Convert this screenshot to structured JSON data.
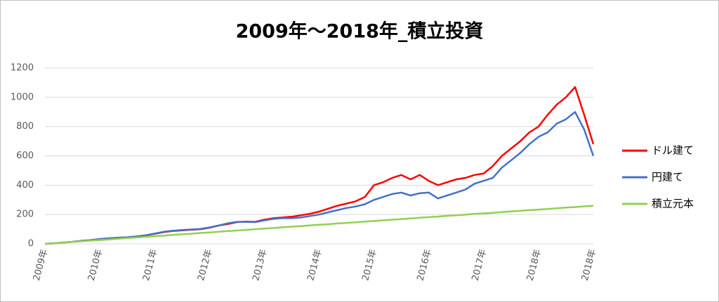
{
  "chart_data": {
    "type": "line",
    "title": "2009年～2018年_積立投資",
    "categories": [
      "2009年",
      null,
      null,
      null,
      null,
      null,
      "2010年",
      null,
      null,
      null,
      null,
      null,
      "2011年",
      null,
      null,
      null,
      null,
      null,
      "2012年",
      null,
      null,
      null,
      null,
      null,
      "2013年",
      null,
      null,
      null,
      null,
      null,
      "2014年",
      null,
      null,
      null,
      null,
      null,
      "2015年",
      null,
      null,
      null,
      null,
      null,
      "2016年",
      null,
      null,
      null,
      null,
      null,
      "2017年",
      null,
      null,
      null,
      null,
      null,
      "2018年",
      null,
      null,
      null,
      null,
      null,
      "2018年"
    ],
    "series": [
      {
        "name": "ドル建て",
        "color": "#ff0000",
        "values": [
          0,
          4,
          9,
          14,
          20,
          26,
          33,
          38,
          42,
          45,
          50,
          58,
          68,
          80,
          88,
          92,
          96,
          100,
          110,
          125,
          135,
          148,
          152,
          150,
          165,
          175,
          180,
          185,
          195,
          205,
          220,
          240,
          260,
          275,
          290,
          320,
          400,
          420,
          450,
          470,
          440,
          470,
          430,
          400,
          420,
          440,
          450,
          470,
          480,
          530,
          600,
          650,
          700,
          760,
          800,
          880,
          950,
          1000,
          1070,
          880,
          680
        ]
      },
      {
        "name": "円建て",
        "color": "#4472c4",
        "values": [
          0,
          4,
          9,
          14,
          20,
          26,
          33,
          38,
          42,
          45,
          50,
          58,
          70,
          82,
          90,
          94,
          98,
          102,
          112,
          125,
          140,
          150,
          150,
          148,
          160,
          170,
          175,
          175,
          180,
          190,
          200,
          215,
          230,
          245,
          255,
          270,
          300,
          320,
          340,
          350,
          330,
          345,
          350,
          310,
          330,
          350,
          370,
          410,
          430,
          450,
          520,
          570,
          620,
          680,
          730,
          760,
          820,
          850,
          900,
          780,
          600
        ]
      },
      {
        "name": "積立元本",
        "color": "#92d050",
        "values": [
          0,
          4,
          9,
          13,
          17,
          22,
          26,
          30,
          35,
          39,
          43,
          48,
          52,
          56,
          61,
          65,
          69,
          74,
          78,
          82,
          87,
          91,
          95,
          100,
          104,
          108,
          113,
          117,
          121,
          126,
          130,
          134,
          139,
          143,
          147,
          152,
          156,
          160,
          165,
          169,
          173,
          178,
          182,
          186,
          191,
          195,
          199,
          204,
          208,
          212,
          217,
          221,
          225,
          230,
          234,
          238,
          243,
          247,
          251,
          256,
          260
        ]
      }
    ],
    "ylim": [
      0,
      1200
    ],
    "yticks": [
      0,
      200,
      400,
      600,
      800,
      1000,
      1200
    ],
    "grid": true,
    "legend": "right"
  }
}
